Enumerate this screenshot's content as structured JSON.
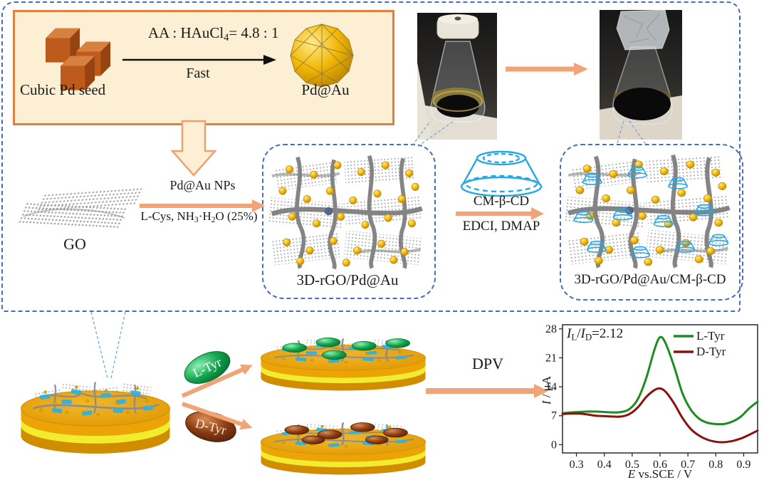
{
  "colors": {
    "accent_arrow": "#f0a478",
    "panel_fill": "#fcefd3",
    "panel_border": "#e0823f",
    "dashed_border": "#4a6bb5",
    "cd_cyan": "#29a7e3",
    "gold": "#f2b705",
    "green_curve": "#1e8c1e",
    "red_curve": "#8b1010"
  },
  "seed_panel": {
    "reagent_pre": "AA :  HAuCl",
    "reagent_sub": "4",
    "reagent_post": "= 4.8 : 1",
    "condition": "Fast",
    "seed_label": "Cubic Pd seed",
    "product_label": "Pd@Au"
  },
  "go_label": "GO",
  "step1": {
    "above": "Pd@Au NPs",
    "below_pre": "L-Cys, NH",
    "below_sub1": "3",
    "below_mid": "·H",
    "below_sub2": "2",
    "below_post": "O (25%)"
  },
  "network_a": {
    "label": "3D-rGO/Pd@Au"
  },
  "step2": {
    "above": "CM-β-CD",
    "below": "EDCI, DMAP"
  },
  "network_b": {
    "label": "3D-rGO/Pd@Au/CM-β-CD"
  },
  "analytes": {
    "l_label": "L-Tyr",
    "d_label": "D-Tyr"
  },
  "dpv_label": "DPV",
  "chart_data": {
    "type": "line",
    "xlabel_var": "E",
    "xlabel_rest": " vs.SCE / V",
    "ylabel_var": "I",
    "ylabel_rest": " / μA",
    "annotation": {
      "var1": "I",
      "sub1": "L",
      "slash": "/",
      "var2": "I",
      "sub2": "D",
      "value": "=2.12"
    },
    "xlim": [
      0.25,
      0.95
    ],
    "ylim": [
      -2,
      29
    ],
    "xticks": [
      "0.3",
      "0.4",
      "0.5",
      "0.6",
      "0.7",
      "0.8",
      "0.9"
    ],
    "yticks": [
      "0",
      "7",
      "14",
      "21",
      "28"
    ],
    "grid": false,
    "legend_position": "top-right",
    "x": [
      0.25,
      0.28,
      0.31,
      0.34,
      0.37,
      0.4,
      0.43,
      0.46,
      0.49,
      0.52,
      0.55,
      0.58,
      0.6,
      0.62,
      0.65,
      0.68,
      0.71,
      0.74,
      0.77,
      0.8,
      0.83,
      0.86,
      0.89,
      0.92,
      0.95
    ],
    "series": [
      {
        "name": "L-Tyr",
        "color": "#1e8c1e",
        "values": [
          7.6,
          7.8,
          7.9,
          8.0,
          8.0,
          7.9,
          7.8,
          7.9,
          8.6,
          11.0,
          16.0,
          23.0,
          26.0,
          24.5,
          19.0,
          12.5,
          8.5,
          6.3,
          5.3,
          5.0,
          5.0,
          5.6,
          6.8,
          8.8,
          10.4
        ]
      },
      {
        "name": "D-Tyr",
        "color": "#8b1010",
        "values": [
          7.4,
          7.5,
          7.5,
          7.3,
          7.0,
          6.9,
          6.8,
          6.8,
          7.4,
          9.0,
          11.5,
          13.2,
          13.6,
          12.8,
          10.0,
          6.5,
          3.8,
          2.2,
          1.2,
          0.7,
          0.6,
          0.9,
          1.5,
          2.4,
          3.4
        ]
      }
    ]
  }
}
